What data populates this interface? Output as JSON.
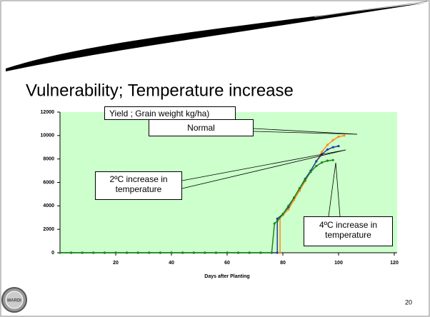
{
  "slide": {
    "title": "Vulnerability; Temperature increase",
    "page_number": "20",
    "logo_text": "MARDI"
  },
  "chart_data": {
    "type": "line",
    "xlabel": "Days after Planting",
    "xlim": [
      0,
      120
    ],
    "xticks": [
      20,
      40,
      60,
      80,
      100,
      120
    ],
    "ylim": [
      0,
      12000
    ],
    "yticks": [
      0,
      2000,
      4000,
      6000,
      8000,
      10000,
      12000
    ],
    "background": "#ccffcc",
    "annotations": [
      "Yield ; Grain weight kg/ha)",
      "Normal",
      "2ºC increase in temperature",
      "4ºC increase in temperature"
    ],
    "series": [
      {
        "color": "#ff8c1a",
        "x": [
          0,
          4,
          8,
          12,
          16,
          20,
          24,
          28,
          32,
          36,
          40,
          44,
          48,
          52,
          56,
          60,
          64,
          68,
          72,
          76,
          79,
          79,
          80,
          82,
          84,
          86,
          88,
          90,
          92,
          94,
          96,
          98,
          100,
          102
        ],
        "values": [
          0,
          0,
          0,
          0,
          0,
          0,
          0,
          0,
          0,
          0,
          0,
          0,
          0,
          0,
          0,
          0,
          0,
          0,
          0,
          0,
          0,
          3000,
          3200,
          3700,
          4500,
          5300,
          6100,
          7000,
          7800,
          8600,
          9200,
          9600,
          9900,
          10000
        ]
      },
      {
        "color": "#1f3fa0",
        "x": [
          0,
          4,
          8,
          12,
          16,
          20,
          24,
          28,
          32,
          36,
          40,
          44,
          48,
          52,
          56,
          60,
          64,
          68,
          72,
          76,
          78,
          78,
          80,
          82,
          84,
          86,
          88,
          90,
          92,
          94,
          96,
          98,
          100
        ],
        "values": [
          0,
          0,
          0,
          0,
          0,
          0,
          0,
          0,
          0,
          0,
          0,
          0,
          0,
          0,
          0,
          0,
          0,
          0,
          0,
          0,
          0,
          2900,
          3300,
          3900,
          4700,
          5500,
          6300,
          7000,
          7800,
          8400,
          8800,
          9000,
          9100
        ]
      },
      {
        "color": "#1a8a1a",
        "x": [
          0,
          4,
          8,
          12,
          16,
          20,
          24,
          28,
          32,
          36,
          40,
          44,
          48,
          52,
          56,
          60,
          64,
          68,
          72,
          76,
          77,
          78,
          80,
          82,
          84,
          86,
          88,
          90,
          92,
          94,
          96,
          98
        ],
        "values": [
          0,
          0,
          0,
          0,
          0,
          0,
          0,
          0,
          0,
          0,
          0,
          0,
          0,
          0,
          0,
          0,
          0,
          0,
          0,
          0,
          2500,
          2700,
          3300,
          4000,
          4700,
          5500,
          6200,
          6900,
          7400,
          7700,
          7850,
          7900
        ]
      }
    ]
  }
}
